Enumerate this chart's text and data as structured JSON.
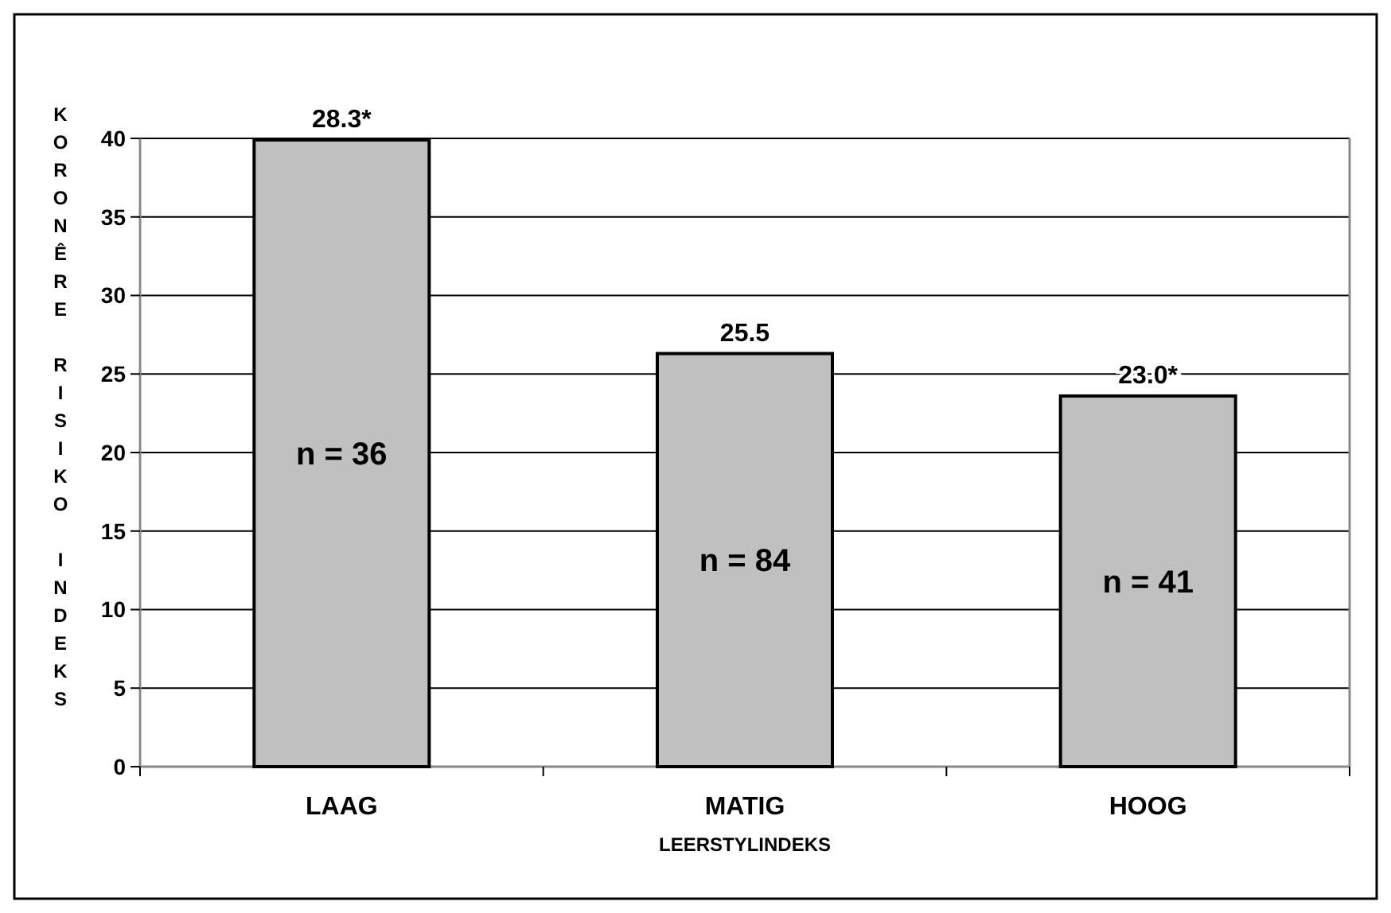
{
  "chart_data": {
    "type": "bar",
    "categories": [
      "LAAG",
      "MATIG",
      "HOOG"
    ],
    "values": [
      39.9,
      26.3,
      23.6
    ],
    "color": "#c0c0c0",
    "ylabel": "KORONÊRE RISIKO INDEKS",
    "xlabel": "LEERSTYLINDEKS",
    "ylim": [
      0,
      40
    ],
    "yticks": [
      0,
      5,
      10,
      15,
      20,
      25,
      30,
      35,
      40
    ],
    "grid": "y",
    "annotations": [
      "28.3*",
      "25.5",
      "23.0*",
      "n = 36",
      "n = 84",
      "n = 41"
    ]
  }
}
